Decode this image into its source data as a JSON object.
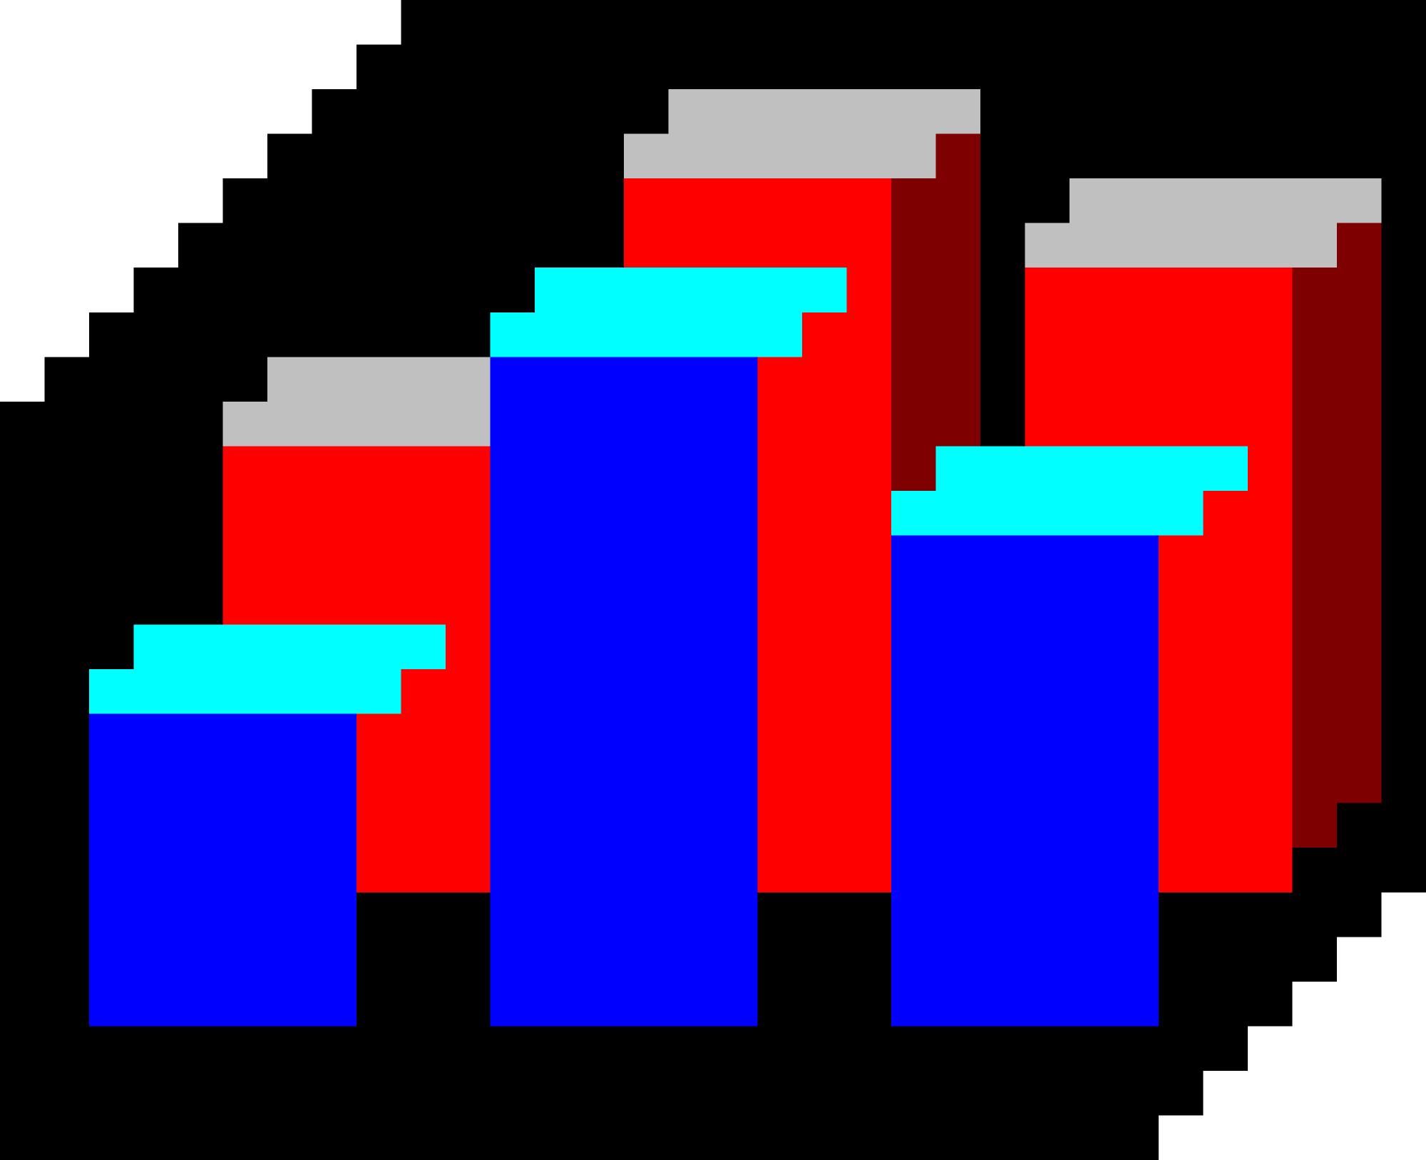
{
  "image": {
    "subject": "bar-chart-icon",
    "style": "pixel-art"
  },
  "palette": {
    "background": "#ffffff",
    "outline": "#000000",
    "back_face": "#ff0000",
    "back_side": "#7f0000",
    "back_top": "#c0c0c0",
    "front_face": "#0000ff",
    "front_top": "#00ffff"
  }
}
